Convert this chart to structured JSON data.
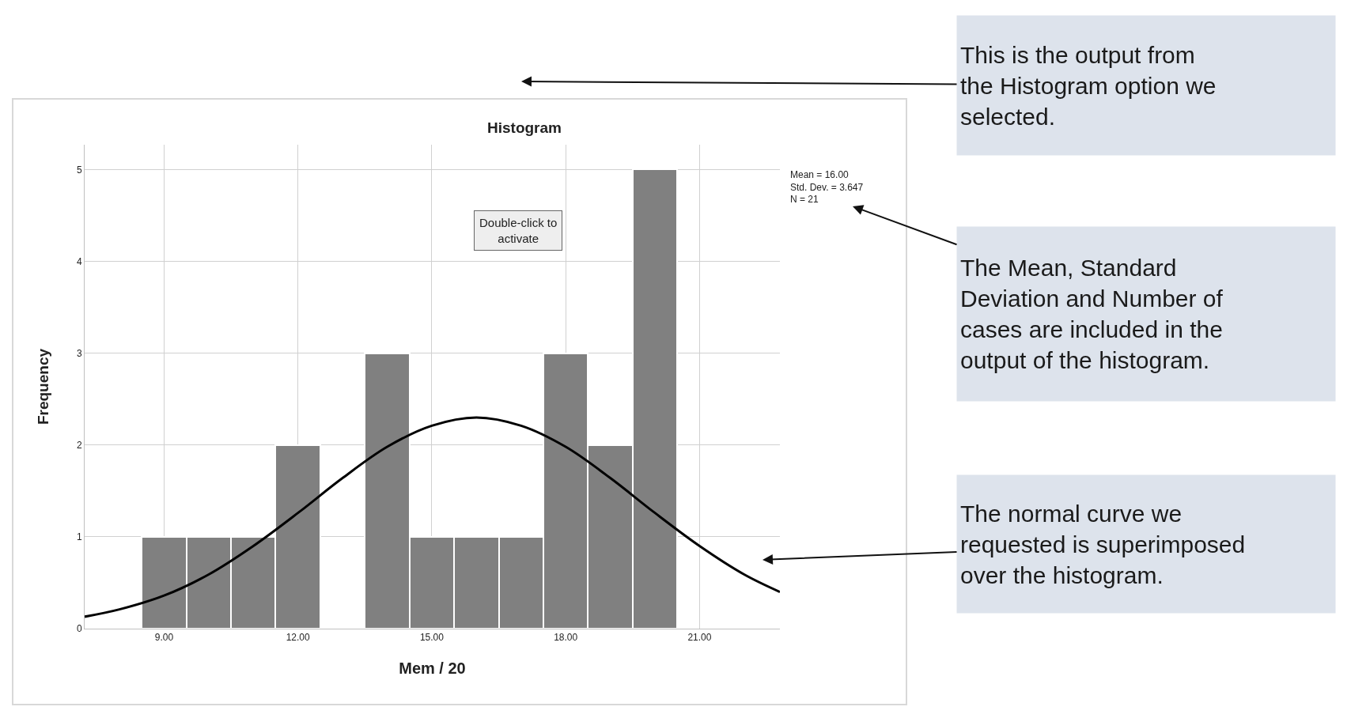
{
  "chart_data": {
    "type": "histogram",
    "title": "Histogram",
    "xlabel": "Mem / 20",
    "ylabel": "Frequency",
    "bins": [
      8.5,
      9.5,
      10.5,
      11.5,
      12.5,
      13.5,
      14.5,
      15.5,
      16.5,
      17.5,
      18.5,
      19.5,
      20.5
    ],
    "values": [
      1,
      1,
      1,
      2,
      0,
      3,
      1,
      1,
      1,
      3,
      2,
      5
    ],
    "color": "#808080",
    "series": [
      {
        "type": "line",
        "color": "#000000",
        "x": [
          7.22,
          8,
          9,
          10,
          11,
          12,
          13,
          14,
          15,
          16,
          17,
          18,
          19,
          20,
          21,
          22,
          22.8
        ],
        "values": [
          0.13,
          0.21,
          0.36,
          0.59,
          0.9,
          1.26,
          1.64,
          1.98,
          2.21,
          2.3,
          2.21,
          1.98,
          1.64,
          1.26,
          0.9,
          0.59,
          0.4
        ]
      }
    ],
    "xlim": [
      7.22,
      22.8
    ],
    "ylim": [
      0,
      5.27
    ],
    "xticks": [
      {
        "value": 9,
        "label": "9.00"
      },
      {
        "value": 12,
        "label": "12.00"
      },
      {
        "value": 15,
        "label": "15.00"
      },
      {
        "value": 18,
        "label": "18.00"
      },
      {
        "value": 21,
        "label": "21.00"
      }
    ],
    "yticks": [
      0,
      1,
      2,
      3,
      4,
      5
    ],
    "grid": true,
    "annotations": [
      "Mean = 16.00\nStd. Dev. = 3.647\nN = 21",
      "Double-click to\nactivate",
      "This is the output from\nthe Histogram option we\nselected.",
      "The Mean, Standard\nDeviation and Number of\ncases are included in the\noutput of the histogram.",
      "The normal curve we\nrequested is superimposed\nover the histogram."
    ]
  }
}
